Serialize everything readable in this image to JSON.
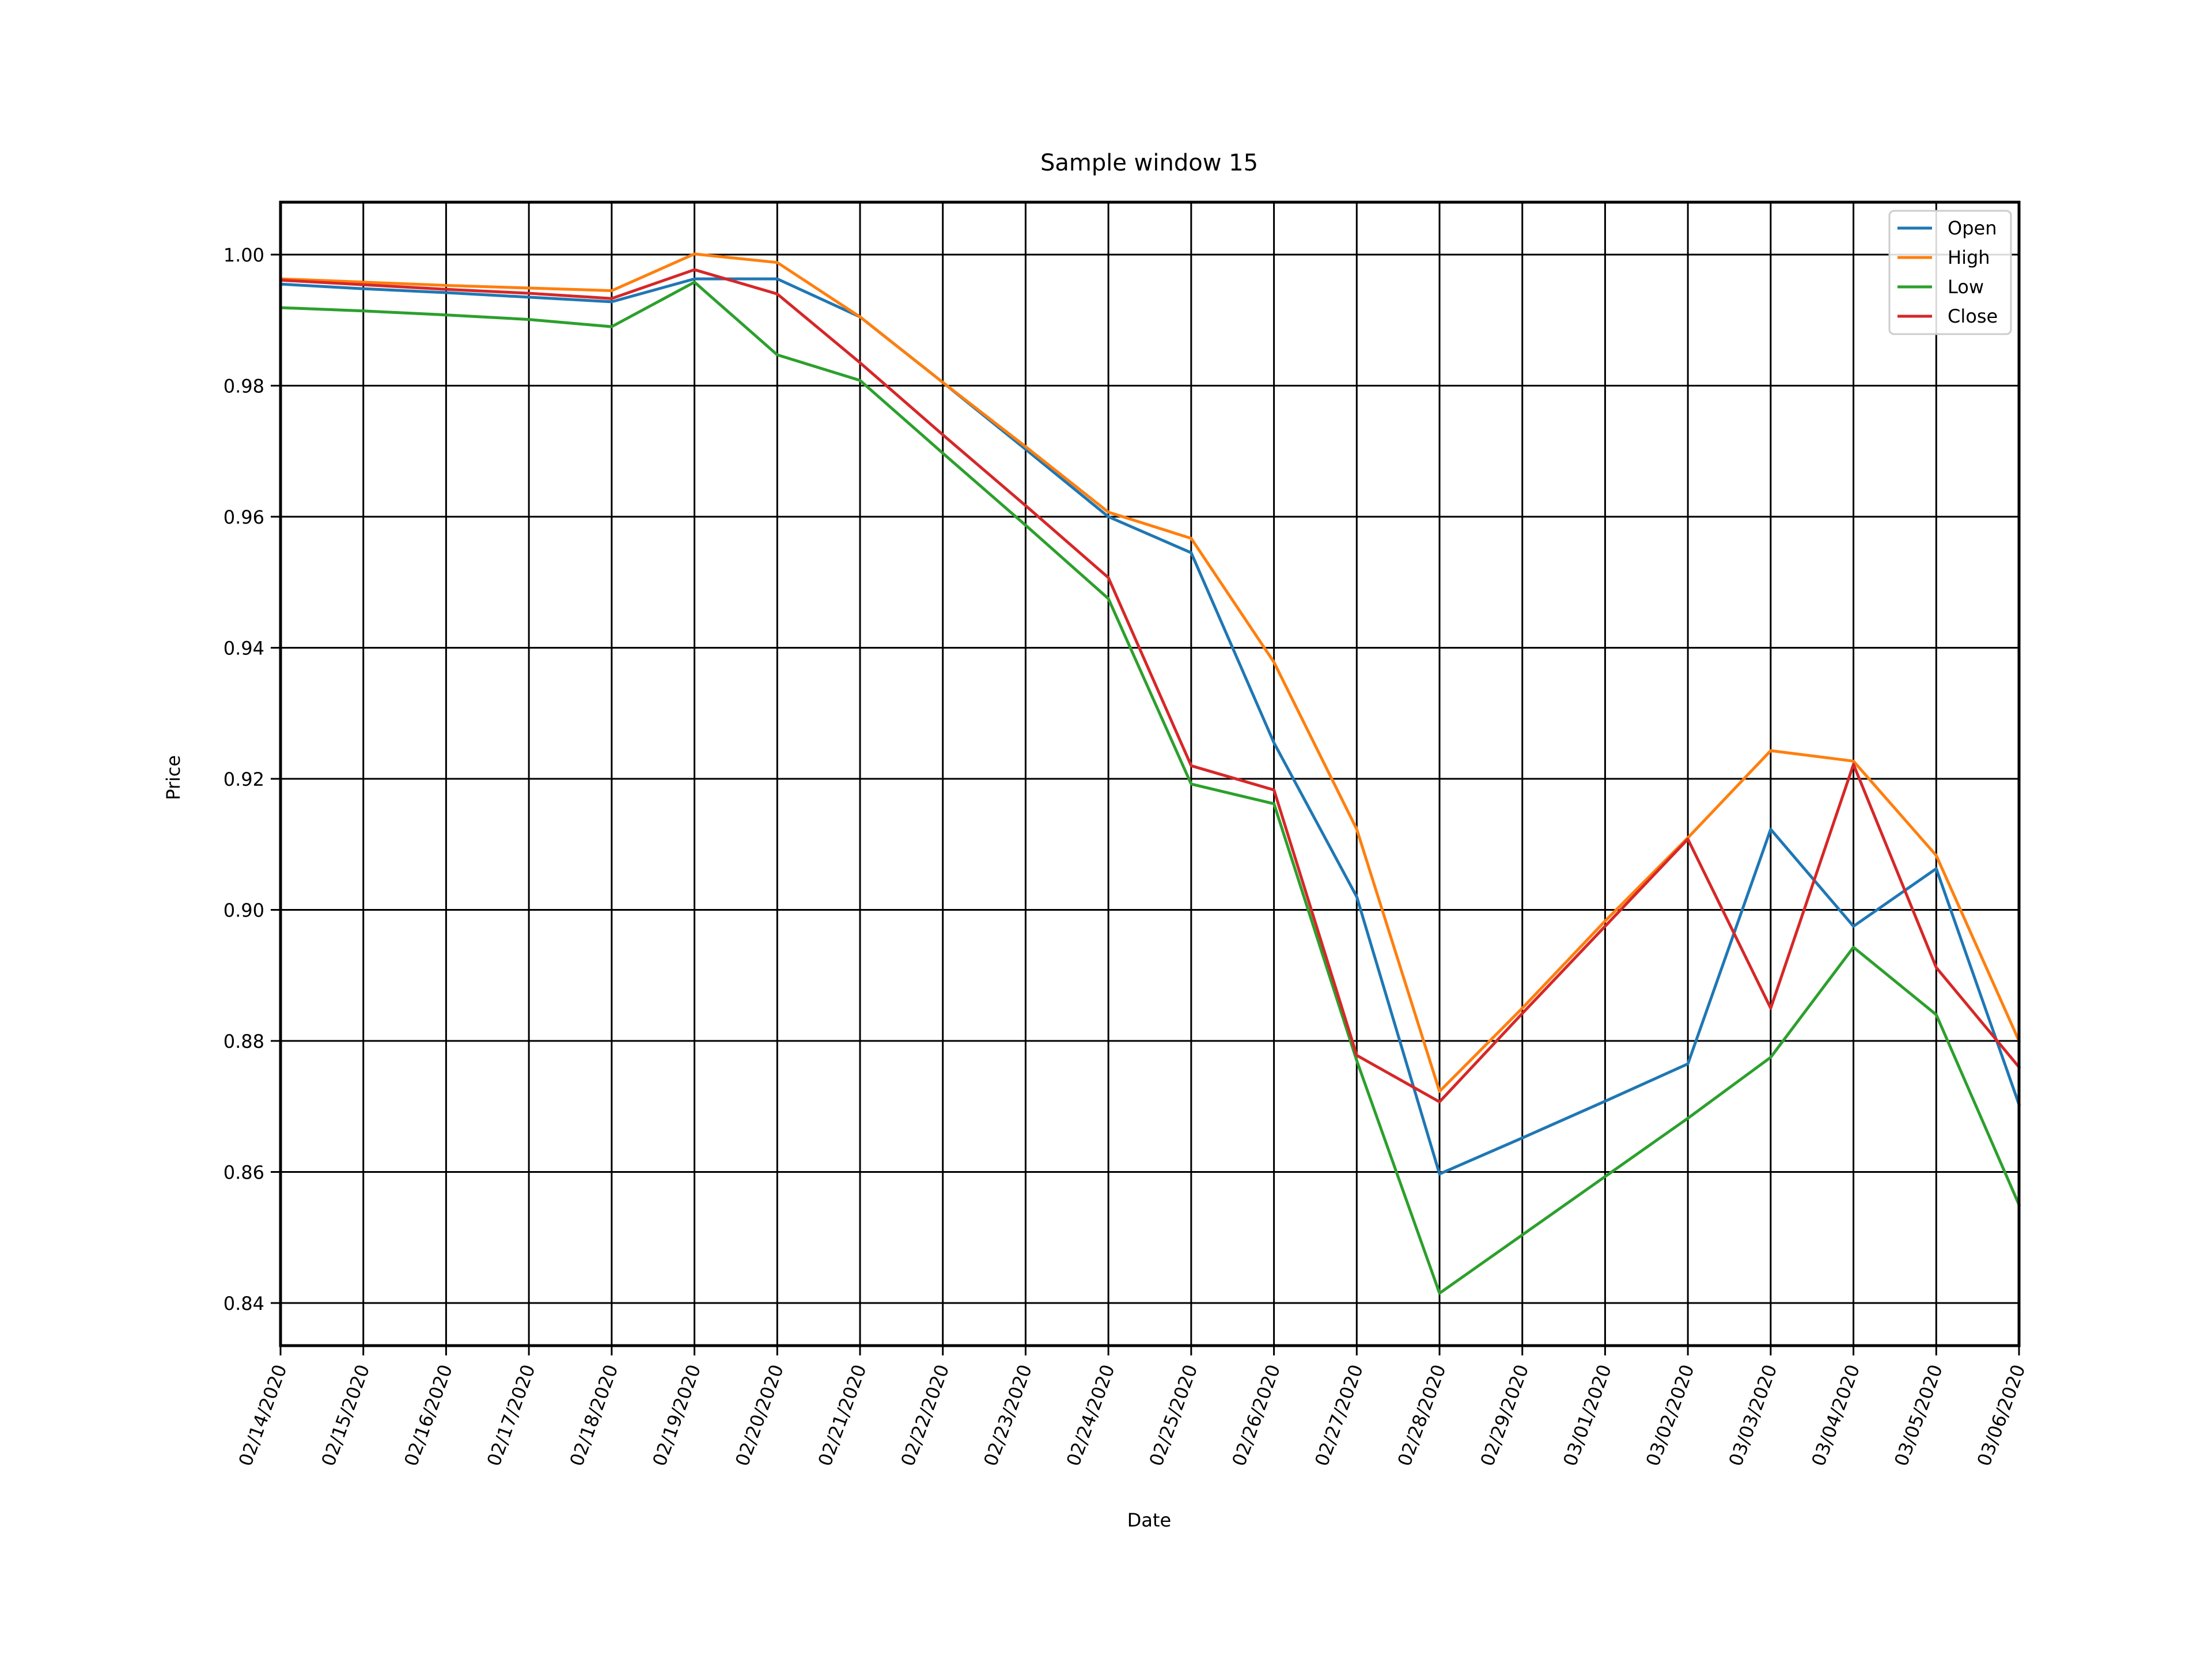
{
  "chart_data": {
    "type": "line",
    "title": "Sample window 15",
    "xlabel": "Date",
    "ylabel": "Price",
    "x": [
      "02/14/2020",
      "02/15/2020",
      "02/16/2020",
      "02/17/2020",
      "02/18/2020",
      "02/19/2020",
      "02/20/2020",
      "02/21/2020",
      "02/22/2020",
      "02/23/2020",
      "02/24/2020",
      "02/25/2020",
      "02/26/2020",
      "02/27/2020",
      "02/28/2020",
      "02/29/2020",
      "03/01/2020",
      "03/02/2020",
      "03/03/2020",
      "03/04/2020",
      "03/05/2020",
      "03/06/2020"
    ],
    "ylim": [
      0.8335,
      1.008
    ],
    "yticks": [
      0.84,
      0.86,
      0.88,
      0.9,
      0.92,
      0.94,
      0.96,
      0.98,
      1.0
    ],
    "ytick_labels": [
      "0.84",
      "0.86",
      "0.88",
      "0.90",
      "0.92",
      "0.94",
      "0.96",
      "0.98",
      "1.00"
    ],
    "grid": true,
    "legend_position": "top-right",
    "series": [
      {
        "name": "Open",
        "color": "#1f77b4",
        "values": [
          0.9955,
          0.9948,
          0.9942,
          0.9935,
          0.9928,
          0.9963,
          0.9963,
          0.9905,
          0.9805,
          0.9703,
          0.96,
          0.9545,
          0.9255,
          0.902,
          0.8597,
          0.8652,
          0.8708,
          0.8765,
          0.9123,
          0.8975,
          0.9063,
          0.8703
        ]
      },
      {
        "name": "High",
        "color": "#ff7f0e",
        "values": [
          0.9963,
          0.9958,
          0.9953,
          0.9949,
          0.9945,
          1.0001,
          0.9988,
          0.9905,
          0.9805,
          0.9707,
          0.9607,
          0.9567,
          0.9378,
          0.9123,
          0.8723,
          0.885,
          0.8983,
          0.911,
          0.9243,
          0.9227,
          0.9083,
          0.88
        ]
      },
      {
        "name": "Low",
        "color": "#2ca02c",
        "values": [
          0.9919,
          0.9914,
          0.9908,
          0.9901,
          0.989,
          0.9958,
          0.9847,
          0.9808,
          0.9697,
          0.9587,
          0.9475,
          0.9192,
          0.9162,
          0.877,
          0.8415,
          0.8504,
          0.8593,
          0.8682,
          0.8775,
          0.8943,
          0.884,
          0.855
        ]
      },
      {
        "name": "Close",
        "color": "#d62728",
        "values": [
          0.9961,
          0.9954,
          0.9947,
          0.9941,
          0.9933,
          0.9977,
          0.994,
          0.9835,
          0.9725,
          0.9617,
          0.9507,
          0.922,
          0.9183,
          0.8778,
          0.8707,
          0.8842,
          0.8975,
          0.9108,
          0.885,
          0.9222,
          0.8912,
          0.876
        ]
      }
    ]
  }
}
